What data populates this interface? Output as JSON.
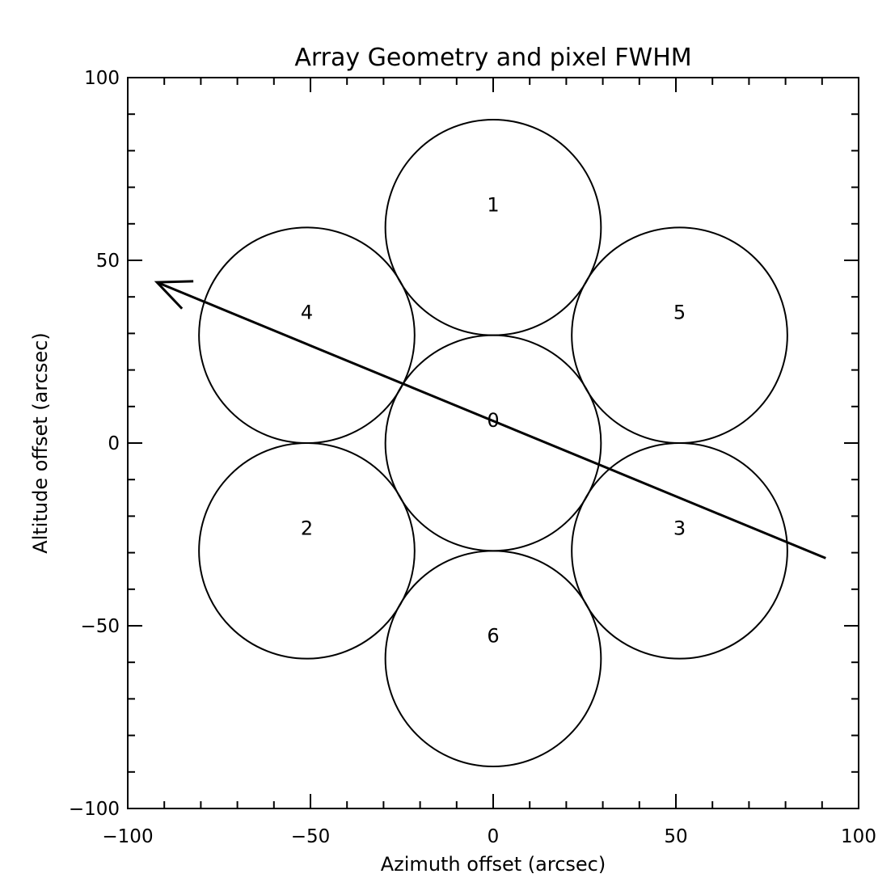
{
  "chart_data": {
    "type": "scatter",
    "title": "Array Geometry and pixel FWHM",
    "xlabel": "Azimuth offset (arcsec)",
    "ylabel": "Altitude offset (arcsec)",
    "xlim": [
      -100,
      100
    ],
    "ylim": [
      -100,
      100
    ],
    "xticks": [
      -100,
      -50,
      0,
      50,
      100
    ],
    "xtick_labels": [
      "−100",
      "−50",
      "0",
      "50",
      "100"
    ],
    "yticks": [
      -100,
      -50,
      0,
      50,
      100
    ],
    "ytick_labels": [
      "−100",
      "−50",
      "0",
      "50",
      "100"
    ],
    "minor_step": 10,
    "grid": false,
    "pixel_fwhm_diameter": 59,
    "pixels": [
      {
        "label": "0",
        "x": 0,
        "y": 0
      },
      {
        "label": "1",
        "x": 0,
        "y": 59
      },
      {
        "label": "2",
        "x": -51,
        "y": -29.5
      },
      {
        "label": "3",
        "x": 51,
        "y": -29.5
      },
      {
        "label": "4",
        "x": -51,
        "y": 29.5
      },
      {
        "label": "5",
        "x": 51,
        "y": 29.5
      },
      {
        "label": "6",
        "x": 0,
        "y": -59
      }
    ],
    "scan_arrow": {
      "start": [
        91,
        -31.5
      ],
      "end": [
        -92,
        44
      ],
      "head": "end"
    }
  }
}
